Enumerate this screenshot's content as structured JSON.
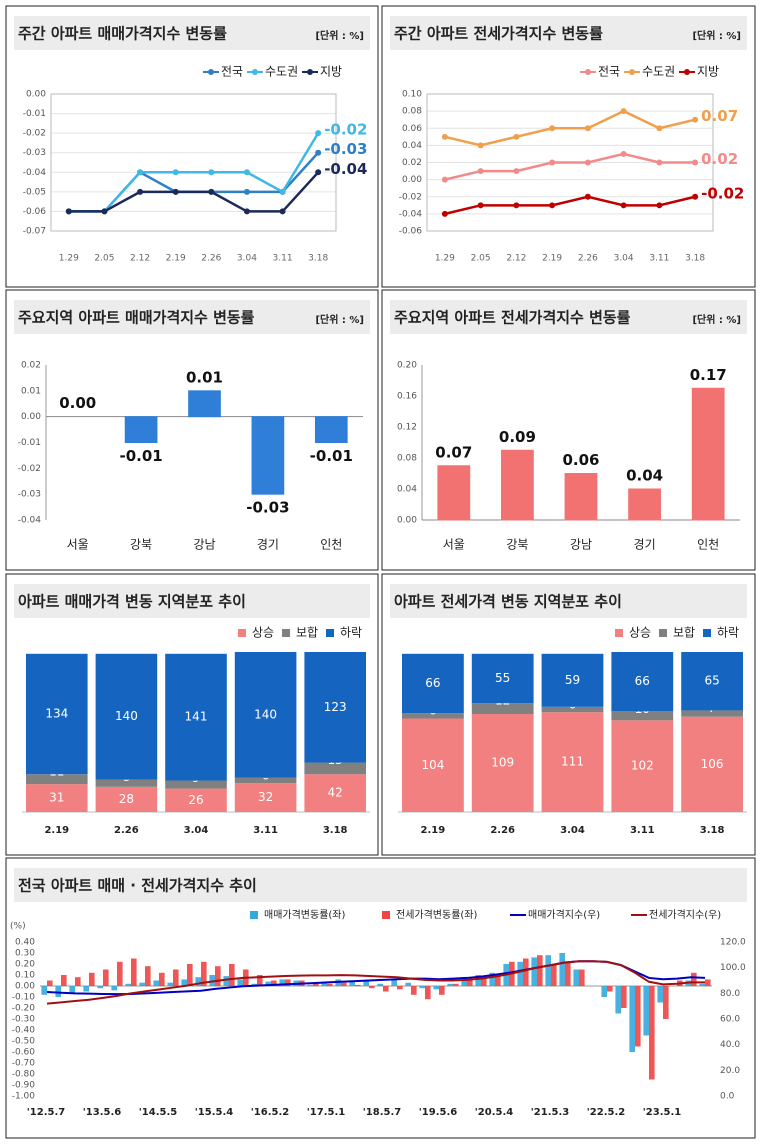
{
  "chart_data": [
    {
      "type": "line",
      "title": "주간 아파트 매매가격지수 변동률",
      "unit_label": "[단위 : %]",
      "categories": [
        "1.29",
        "2.05",
        "2.12",
        "2.19",
        "2.26",
        "3.04",
        "3.11",
        "3.18"
      ],
      "series": [
        {
          "name": "전국",
          "color": "#2f7fc8",
          "values": [
            -0.06,
            -0.06,
            -0.04,
            -0.05,
            -0.05,
            -0.05,
            -0.05,
            -0.03
          ]
        },
        {
          "name": "수도권",
          "color": "#3fb8e6",
          "values": [
            -0.06,
            -0.06,
            -0.04,
            -0.04,
            -0.04,
            -0.04,
            -0.05,
            -0.02
          ]
        },
        {
          "name": "지방",
          "color": "#1b2a5a",
          "values": [
            -0.06,
            -0.06,
            -0.05,
            -0.05,
            -0.05,
            -0.06,
            -0.06,
            -0.04
          ]
        }
      ],
      "ylim": [
        -0.07,
        0
      ],
      "yticks": [
        {
          "value": 0,
          "label": "0.00"
        },
        -0.01,
        -0.02,
        -0.03,
        -0.04,
        -0.05,
        -0.06,
        -0.07
      ],
      "grid": true
    },
    {
      "type": "line",
      "title": "주간 아파트 전세가격지수 변동률",
      "unit_label": "[단위 : %]",
      "categories": [
        "1.29",
        "2.05",
        "2.12",
        "2.19",
        "2.26",
        "3.04",
        "3.11",
        "3.18"
      ],
      "series": [
        {
          "name": "전국",
          "color": "#f28a8a",
          "values": [
            0,
            0.01,
            0.01,
            0.02,
            0.02,
            0.03,
            0.02,
            0.02
          ]
        },
        {
          "name": "수도권",
          "color": "#f0a04b",
          "values": [
            0.05,
            0.04,
            0.05,
            0.06,
            0.06,
            0.08,
            0.06,
            0.07
          ]
        },
        {
          "name": "지방",
          "color": "#c00000",
          "values": [
            -0.04,
            -0.03,
            -0.03,
            -0.03,
            -0.02,
            -0.03,
            -0.03,
            -0.02
          ]
        }
      ],
      "ylim": [
        -0.06,
        0.1
      ],
      "yticks": [
        {
          "value": 0.1,
          "label": "0.10"
        },
        0.08,
        0.06,
        0.04,
        0.02,
        {
          "value": 0,
          "label": "0.00"
        },
        -0.02,
        -0.04,
        -0.06
      ],
      "grid": true
    },
    {
      "type": "bar",
      "title": "주요지역 아파트 매매가격지수 변동률",
      "unit_label": "[단위 : %]",
      "categories": [
        "서울",
        "강북",
        "강남",
        "경기",
        "인천"
      ],
      "values": [
        0,
        -0.01,
        0.01,
        -0.03,
        -0.01
      ],
      "value_labels": [
        "0.00",
        "-0.01",
        "0.01",
        "-0.03",
        "-0.01"
      ],
      "color": "#2f7fd8",
      "ylim": [
        -0.04,
        0.02
      ],
      "yticks": [
        0.02,
        0.01,
        {
          "value": 0,
          "label": "0.00"
        },
        -0.01,
        -0.02,
        -0.03,
        -0.04
      ]
    },
    {
      "type": "bar",
      "title": "주요지역 아파트 전세가격지수 변동률",
      "unit_label": "[단위 : %]",
      "categories": [
        "서울",
        "강북",
        "강남",
        "경기",
        "인천"
      ],
      "values": [
        0.07,
        0.09,
        0.06,
        0.04,
        0.17
      ],
      "color": "#f27272",
      "ylim": [
        0,
        0.2
      ],
      "yticks": [
        {
          "value": 0.2,
          "label": "0.20"
        },
        0.16,
        0.12,
        0.08,
        0.04,
        {
          "value": 0,
          "label": "0.00"
        }
      ]
    },
    {
      "type": "stacked_bar",
      "title": "아파트 매매가격 변동 지역분포 추이",
      "categories": [
        "2.19",
        "2.26",
        "3.04",
        "3.11",
        "3.18"
      ],
      "series": [
        {
          "name": "상승",
          "color": "#f28080",
          "values": [
            31,
            28,
            26,
            32,
            42
          ]
        },
        {
          "name": "보합",
          "color": "#808080",
          "values": [
            11,
            8,
            9,
            6,
            13
          ]
        },
        {
          "name": "하락",
          "color": "#1565c0",
          "values": [
            134,
            140,
            141,
            140,
            123
          ]
        }
      ]
    },
    {
      "type": "stacked_bar",
      "title": "아파트 전세가격 변동 지역분포 추이",
      "categories": [
        "2.19",
        "2.26",
        "3.04",
        "3.11",
        "3.18"
      ],
      "series": [
        {
          "name": "상승",
          "color": "#f28080",
          "values": [
            104,
            109,
            111,
            102,
            106
          ]
        },
        {
          "name": "보합",
          "color": "#808080",
          "values": [
            6,
            12,
            6,
            10,
            7
          ]
        },
        {
          "name": "하락",
          "color": "#1565c0",
          "values": [
            66,
            55,
            59,
            66,
            65
          ]
        }
      ]
    },
    {
      "type": "combo",
      "title": "전국 아파트 매매 · 전세가격지수 추이",
      "y_label": "(%)",
      "categories": [
        "'12.5.7",
        null,
        null,
        null,
        "'13.5.6",
        null,
        null,
        null,
        "'14.5.5",
        null,
        null,
        null,
        "'15.5.4",
        null,
        null,
        null,
        "'16.5.2",
        null,
        null,
        null,
        "'17.5.1",
        null,
        null,
        null,
        "'18.5.7",
        null,
        null,
        null,
        "'19.5.6",
        null,
        null,
        null,
        "'20.5.4",
        null,
        null,
        null,
        "'21.5.3",
        null,
        null,
        null,
        "'22.5.2",
        null,
        null,
        null,
        "'23.5.1",
        null,
        null,
        null
      ],
      "series": [
        {
          "name": "매매가격변동률(좌)",
          "color": "#35a9dc",
          "values": [
            -0.08,
            -0.1,
            -0.06,
            -0.05,
            -0.02,
            -0.04,
            0.02,
            0.03,
            0.05,
            0.03,
            0.06,
            0.08,
            0.1,
            0.09,
            0.06,
            0.02,
            0.04,
            0.06,
            0.05,
            0.01,
            0.03,
            0.06,
            0.04,
            0.05,
            0.02,
            0.06,
            0.03,
            -0.02,
            -0.03,
            0.02,
            0.08,
            0.1,
            0.12,
            0.2,
            0.22,
            0.26,
            0.28,
            0.3,
            0.15,
            0,
            -0.1,
            -0.25,
            -0.6,
            -0.45,
            -0.15,
            0,
            0.05,
            0.02
          ]
        },
        {
          "name": "전세가격변동률(좌)",
          "color": "#ee4444",
          "values": [
            0.05,
            0.1,
            0.08,
            0.12,
            0.15,
            0.22,
            0.25,
            0.18,
            0.12,
            0.15,
            0.2,
            0.22,
            0.18,
            0.2,
            0.15,
            0.1,
            0.05,
            0.06,
            0.05,
            0.03,
            0.02,
            0.03,
            0.01,
            -0.02,
            -0.05,
            -0.03,
            -0.08,
            -0.12,
            -0.08,
            0.02,
            0.06,
            0.08,
            0.1,
            0.22,
            0.25,
            0.28,
            0.2,
            0.22,
            0.15,
            0,
            -0.05,
            -0.2,
            -0.55,
            -0.85,
            -0.3,
            0.05,
            0.12,
            0.06
          ]
        },
        {
          "name": "매매가격지수(우)",
          "color": "#0000c0",
          "axis": "y2",
          "values": [
            81,
            80.5,
            80,
            79.8,
            79.5,
            79.4,
            79.5,
            80,
            80.5,
            81,
            81.5,
            82,
            83.5,
            84.5,
            85.5,
            86,
            86.5,
            87,
            87.5,
            88,
            88.5,
            89,
            89.5,
            90,
            90.5,
            91,
            91.5,
            91.5,
            91,
            91.5,
            92,
            93,
            94.5,
            96,
            98,
            100,
            102,
            104,
            105,
            105,
            104.5,
            102,
            97,
            92,
            91,
            91.5,
            92.5,
            92
          ]
        },
        {
          "name": "전세가격지수(우)",
          "color": "#a01010",
          "axis": "y2",
          "values": [
            72,
            73,
            74,
            75,
            76.5,
            78,
            80,
            81.5,
            83,
            84.5,
            86,
            88,
            89.5,
            91,
            92,
            92.5,
            93,
            93.5,
            93.8,
            94,
            94,
            94.2,
            94,
            93.5,
            93,
            92.5,
            91.5,
            90.5,
            90,
            90,
            90.5,
            91.5,
            93,
            95,
            97.5,
            100,
            102,
            104,
            105,
            105,
            104.5,
            102,
            96,
            89,
            87,
            87.5,
            88.5,
            88.5
          ]
        }
      ],
      "ylim": [
        -1,
        0.4
      ],
      "yticks": [
        {
          "value": 0.4,
          "label": "0.40"
        },
        {
          "value": 0.3,
          "label": "0.30"
        },
        {
          "value": 0.2,
          "label": "0.20"
        },
        {
          "value": 0.1,
          "label": "0.10"
        },
        {
          "value": 0,
          "label": "0.00"
        },
        {
          "value": -0.1,
          "label": "-0.10"
        },
        {
          "value": -0.2,
          "label": "-0.20"
        },
        {
          "value": -0.3,
          "label": "-0.30"
        },
        {
          "value": -0.4,
          "label": "-0.40"
        },
        {
          "value": -0.5,
          "label": "-0.50"
        },
        {
          "value": -0.6,
          "label": "-0.60"
        },
        {
          "value": -0.7,
          "label": "-0.70"
        },
        {
          "value": -0.8,
          "label": "-0.80"
        },
        {
          "value": -0.9,
          "label": "-0.90"
        },
        {
          "value": -1,
          "label": "-1.00"
        }
      ],
      "y2lim": [
        0,
        120
      ],
      "y2ticks": [
        {
          "value": 120,
          "label": "120.0"
        },
        {
          "value": 100,
          "label": "100.0"
        },
        {
          "value": 80,
          "label": "80.0"
        },
        {
          "value": 60,
          "label": "60.0"
        },
        {
          "value": 40,
          "label": "40.0"
        },
        {
          "value": 20,
          "label": "20.0"
        },
        {
          "value": 0,
          "label": "0.0"
        }
      ]
    }
  ]
}
